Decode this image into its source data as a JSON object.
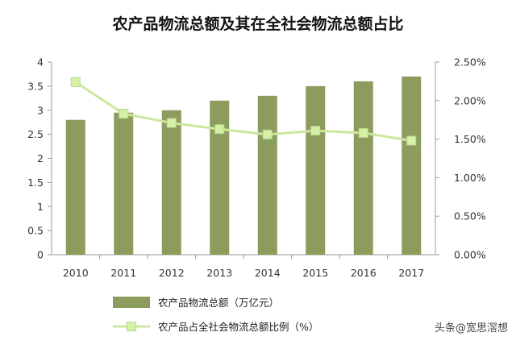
{
  "chart_data": {
    "type": "bar",
    "title": "农产品物流总额及其在全社会物流总额占比",
    "categories": [
      "2010",
      "2011",
      "2012",
      "2013",
      "2014",
      "2015",
      "2016",
      "2017"
    ],
    "series": [
      {
        "name": "农产品物流总额（万亿元）",
        "kind": "bar",
        "axis": "left",
        "values": [
          2.8,
          2.95,
          3.0,
          3.2,
          3.3,
          3.5,
          3.6,
          3.7
        ],
        "color": "#8c9c5c"
      },
      {
        "name": "农产品占全社会物流总额比例（%）",
        "kind": "line",
        "axis": "right",
        "values": [
          2.24,
          1.83,
          1.71,
          1.63,
          1.56,
          1.61,
          1.58,
          1.48
        ],
        "color": "#cbe89e",
        "marker_color": "#d6f0a8"
      }
    ],
    "y_left": {
      "ylim": [
        0,
        4
      ],
      "ticks": [
        "0",
        "0.5",
        "1",
        "1.5",
        "2",
        "2.5",
        "3",
        "3.5",
        "4"
      ]
    },
    "y_right": {
      "ylim": [
        0,
        2.5
      ],
      "ticks": [
        "0.00%",
        "0.50%",
        "1.00%",
        "1.50%",
        "2.00%",
        "2.50%"
      ]
    },
    "grid": false,
    "legend_position": "bottom"
  },
  "watermark": "头条@宽思滘想"
}
